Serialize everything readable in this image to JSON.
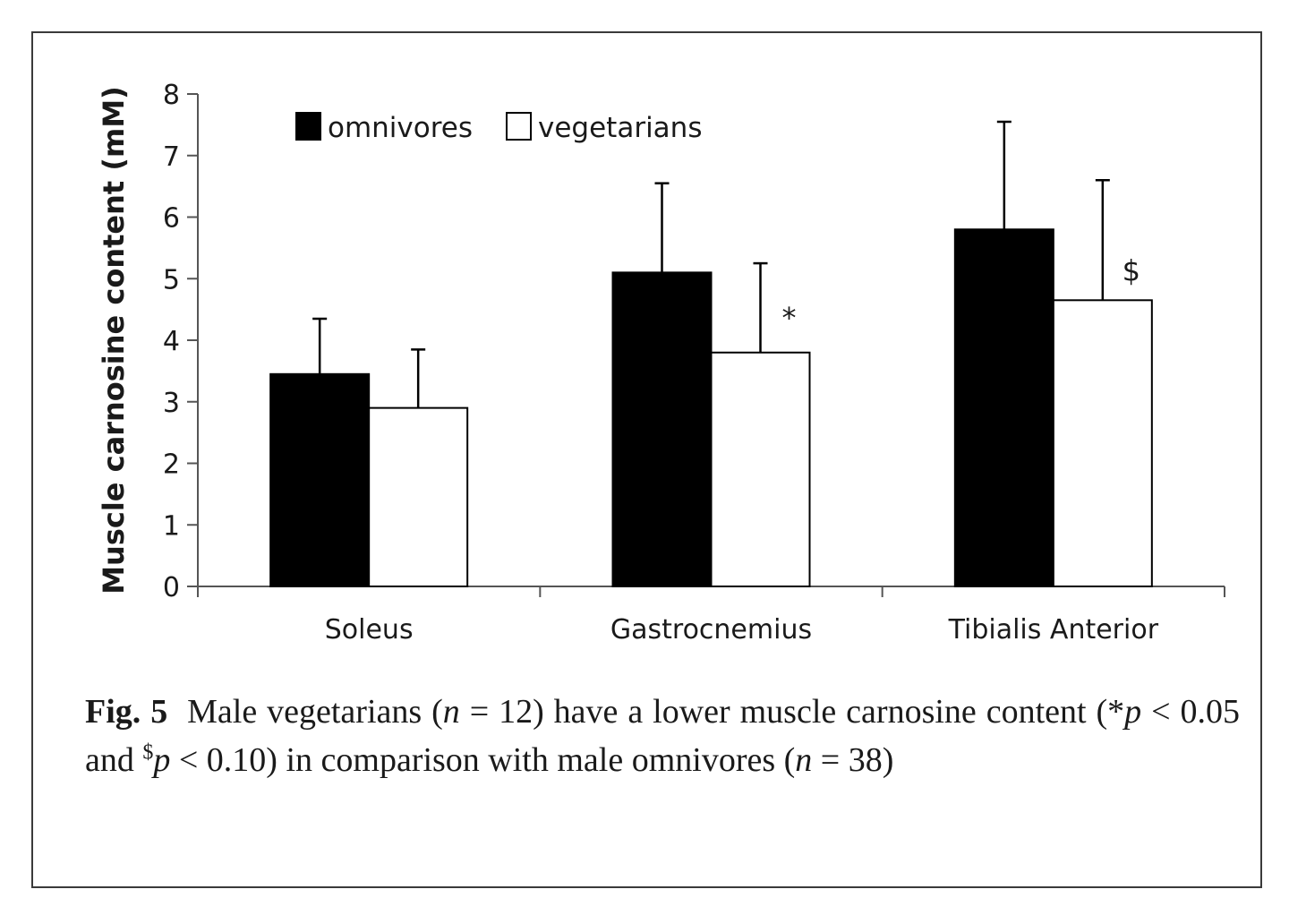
{
  "chart_data": {
    "type": "bar",
    "ylabel": "Muscle carnosine content (mM)",
    "xlabel": "",
    "ylim": [
      0,
      8
    ],
    "yticks": [
      "0",
      "1",
      "2",
      "3",
      "4",
      "5",
      "6",
      "7",
      "8"
    ],
    "categories": [
      "Soleus",
      "Gastrocnemius",
      "Tibialis Anterior"
    ],
    "series": [
      {
        "name": "omnivores",
        "color": "#000000",
        "values": [
          3.45,
          5.1,
          5.8
        ],
        "errors": [
          0.9,
          1.45,
          1.75
        ],
        "annotations": [
          "",
          "",
          ""
        ]
      },
      {
        "name": "vegetarians",
        "color": "#ffffff",
        "values": [
          2.9,
          3.8,
          4.65
        ],
        "errors": [
          0.95,
          1.45,
          1.95
        ],
        "annotations": [
          "",
          "*",
          "$"
        ]
      }
    ],
    "legend": "top-left",
    "grid": false
  },
  "caption": {
    "label": "Fig. 5",
    "t1": "Male vegetarians (",
    "n1": "n",
    "t2": " = 12) have a lower muscle carnosine content (*",
    "p1": "p",
    "t3": " < 0.05 and ",
    "sup": "$",
    "p2": "p",
    "t4": " < 0.10) in comparison with male omnivores (",
    "n2": "n",
    "t5": " = 38)"
  }
}
